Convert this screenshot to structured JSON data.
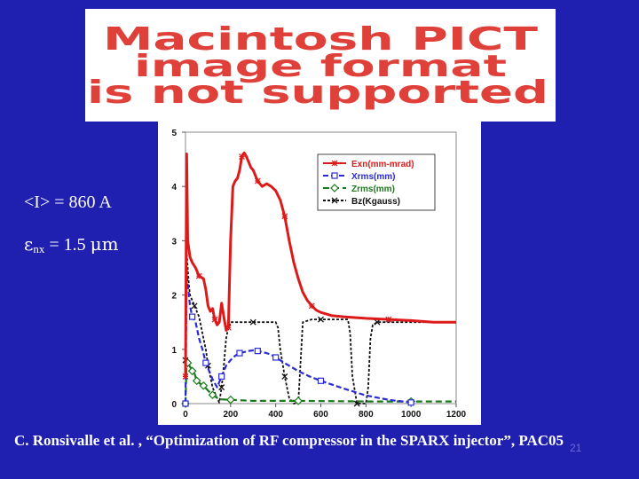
{
  "placeholder": {
    "lines": [
      "Macintosh PICT",
      "image format",
      "is not supported"
    ],
    "color": "#e0403a"
  },
  "labels": {
    "current_lhs": "<I>",
    "current_rhs": " = 860 A",
    "emittance_symbol": "ε",
    "emittance_subscript": "nx",
    "emittance_rhs": " = 1.5 ",
    "emittance_unit": "μm"
  },
  "citation": "C. Ronsivalle et al. , “Optimization of RF compressor in the SPARX injector”, PAC05",
  "slide_number": "21",
  "chart_data": {
    "type": "line",
    "xlim": [
      0,
      1200
    ],
    "ylim": [
      0,
      5
    ],
    "xticks": [
      "0",
      "200",
      "400",
      "600",
      "800",
      "1000",
      "1200"
    ],
    "yticks": [
      "0",
      "1",
      "2",
      "3",
      "4",
      "5"
    ],
    "legend_position": "top-right",
    "series": [
      {
        "name": "Exn(mm-mrad)",
        "color": "#dd1a1a",
        "dash": "",
        "width": 3,
        "marker": "*",
        "x": [
          0,
          5,
          10,
          20,
          30,
          45,
          60,
          80,
          90,
          100,
          110,
          120,
          130,
          140,
          150,
          160,
          170,
          180,
          190,
          200,
          210,
          220,
          230,
          240,
          250,
          260,
          270,
          280,
          290,
          300,
          320,
          340,
          360,
          380,
          400,
          420,
          440,
          460,
          480,
          500,
          520,
          540,
          560,
          580,
          600,
          650,
          700,
          800,
          900,
          1000,
          1100,
          1200
        ],
        "y": [
          0.5,
          4.6,
          3.0,
          2.7,
          2.6,
          2.5,
          2.35,
          2.3,
          2.1,
          1.8,
          1.7,
          1.75,
          1.55,
          1.45,
          1.5,
          1.85,
          1.6,
          1.35,
          1.4,
          3.0,
          4.0,
          4.1,
          4.15,
          4.3,
          4.55,
          4.62,
          4.55,
          4.45,
          4.35,
          4.3,
          4.1,
          4.0,
          4.05,
          4.0,
          3.92,
          3.75,
          3.45,
          3.0,
          2.6,
          2.3,
          2.05,
          1.9,
          1.8,
          1.72,
          1.68,
          1.62,
          1.6,
          1.57,
          1.55,
          1.53,
          1.5,
          1.5
        ]
      },
      {
        "name": "Xrms(mm)",
        "color": "#2a2ad6",
        "dash": "6,3",
        "width": 2.2,
        "marker": "square",
        "x": [
          0,
          5,
          10,
          20,
          30,
          45,
          60,
          75,
          90,
          105,
          120,
          140,
          160,
          180,
          200,
          220,
          240,
          260,
          280,
          300,
          320,
          340,
          360,
          380,
          400,
          450,
          500,
          550,
          600,
          700,
          800,
          900,
          1000
        ],
        "y": [
          0,
          2.5,
          2.2,
          1.8,
          1.6,
          1.5,
          1.2,
          1.0,
          0.75,
          0.6,
          0.45,
          0.3,
          0.5,
          0.7,
          0.8,
          0.88,
          0.93,
          0.95,
          0.97,
          0.98,
          0.97,
          0.95,
          0.93,
          0.9,
          0.85,
          0.72,
          0.6,
          0.5,
          0.42,
          0.28,
          0.15,
          0.07,
          0.02
        ]
      },
      {
        "name": "Zrms(mm)",
        "color": "#1a7a1a",
        "dash": "7,4",
        "width": 2.2,
        "marker": "diamond",
        "x": [
          0,
          5,
          10,
          20,
          30,
          40,
          50,
          60,
          80,
          100,
          120,
          150,
          200,
          300,
          500,
          800,
          1000,
          1200
        ],
        "y": [
          0,
          0.8,
          0.75,
          0.68,
          0.6,
          0.55,
          0.42,
          0.38,
          0.33,
          0.24,
          0.16,
          0.08,
          0.07,
          0.05,
          0.05,
          0.04,
          0.04,
          0.04
        ]
      },
      {
        "name": "Bz(Kgauss)",
        "color": "#111111",
        "dash": "3,2",
        "width": 1.8,
        "marker": "x",
        "x": [
          0,
          5,
          10,
          15,
          20,
          30,
          40,
          50,
          60,
          70,
          80,
          90,
          100,
          110,
          120,
          130,
          140,
          150,
          160,
          170,
          180,
          190,
          200,
          250,
          300,
          350,
          380,
          400,
          410,
          420,
          440,
          460,
          480,
          500,
          520,
          560,
          600,
          650,
          700,
          720,
          730,
          740,
          760,
          780,
          800,
          810,
          820,
          830,
          850,
          900,
          1000,
          1100,
          1200
        ],
        "y": [
          0.8,
          2.8,
          2.5,
          2.2,
          2.0,
          1.9,
          1.8,
          1.7,
          1.6,
          1.4,
          1.2,
          1.0,
          0.7,
          0.5,
          0.3,
          0.2,
          0.1,
          0.02,
          0.3,
          0.7,
          1.2,
          1.4,
          1.5,
          1.5,
          1.5,
          1.5,
          1.5,
          1.5,
          1.4,
          1.0,
          0.5,
          0.1,
          0.0,
          0.02,
          1.5,
          1.55,
          1.55,
          1.55,
          1.55,
          1.55,
          1.3,
          0.5,
          0.0,
          0.0,
          0.0,
          0.3,
          1.2,
          1.45,
          1.5,
          1.5,
          1.5,
          1.5,
          1.5
        ]
      }
    ]
  }
}
